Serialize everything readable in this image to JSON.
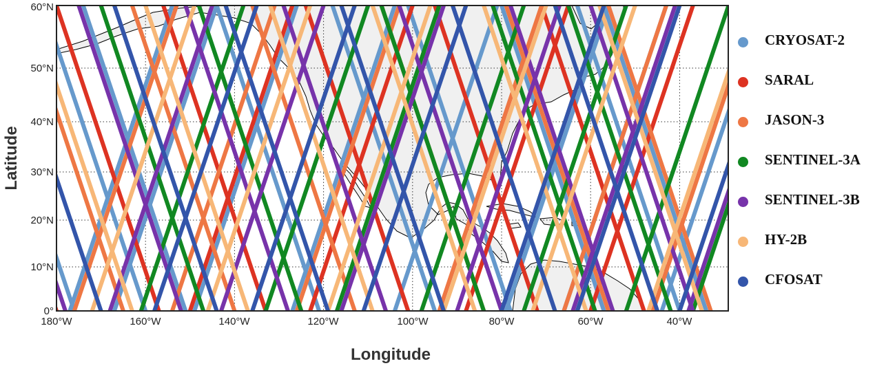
{
  "map": {
    "xlabel": "Longitude",
    "ylabel": "Latitude",
    "lon_range": [
      -180,
      -29
    ],
    "lat_range": [
      0,
      60
    ],
    "x_ticks": [
      "180°W",
      "160°W",
      "140°W",
      "120°W",
      "100°W",
      "80°W",
      "60°W",
      "40°W"
    ],
    "y_ticks": [
      "0°",
      "10°N",
      "20°N",
      "30°N",
      "40°N",
      "50°N",
      "60°N"
    ],
    "land_color": "#f0f0f0",
    "coast_color": "#000000",
    "grid": "dotted"
  },
  "legend": [
    {
      "label": "CRYOSAT-2",
      "color": "#6699cc"
    },
    {
      "label": "SARAL",
      "color": "#dd3322"
    },
    {
      "label": "JASON-3",
      "color": "#ee7744"
    },
    {
      "label": "SENTINEL-3A",
      "color": "#118822"
    },
    {
      "label": "SENTINEL-3B",
      "color": "#7733aa"
    },
    {
      "label": "HY-2B",
      "color": "#f7b777"
    },
    {
      "label": "CFOSAT",
      "color": "#3355aa"
    }
  ],
  "tracks": [
    {
      "mission": 0,
      "asc": [
        -177,
        -167,
        -149,
        -127,
        -104,
        -79,
        -66,
        -44
      ],
      "desc": [
        -176,
        -160,
        -151,
        -121,
        -95,
        -78,
        -57,
        -40,
        -34
      ]
    },
    {
      "mission": 1,
      "asc": [
        -150,
        -123,
        -88,
        -60
      ],
      "desc": [
        -180,
        -157,
        -133,
        -101,
        -72,
        -48
      ]
    },
    {
      "mission": 2,
      "asc": [
        -176,
        -154,
        -126,
        -94,
        -66,
        -46
      ],
      "desc": [
        -165,
        -140,
        -113,
        -84,
        -56,
        -33
      ]
    },
    {
      "mission": 3,
      "asc": [
        -161,
        -133,
        -117,
        -98,
        -75,
        -52,
        -37
      ],
      "desc": [
        -186,
        -147,
        -125,
        -84,
        -59,
        -42
      ]
    },
    {
      "mission": 4,
      "asc": [
        -168,
        -143,
        -116,
        -90,
        -64,
        -38
      ],
      "desc": [
        -189,
        -178,
        -152,
        -128,
        -106,
        -80,
        -55,
        -37
      ]
    },
    {
      "mission": 5,
      "asc": [
        -172,
        -146,
        -119,
        -93,
        -73,
        -47
      ],
      "desc": [
        -163,
        -137,
        -109,
        -86,
        -61,
        -35
      ]
    },
    {
      "mission": 6,
      "asc": [
        -158,
        -136,
        -111,
        -80,
        -63,
        -40
      ],
      "desc": [
        -170,
        -144,
        -119,
        -93,
        -68,
        -45
      ]
    }
  ]
}
